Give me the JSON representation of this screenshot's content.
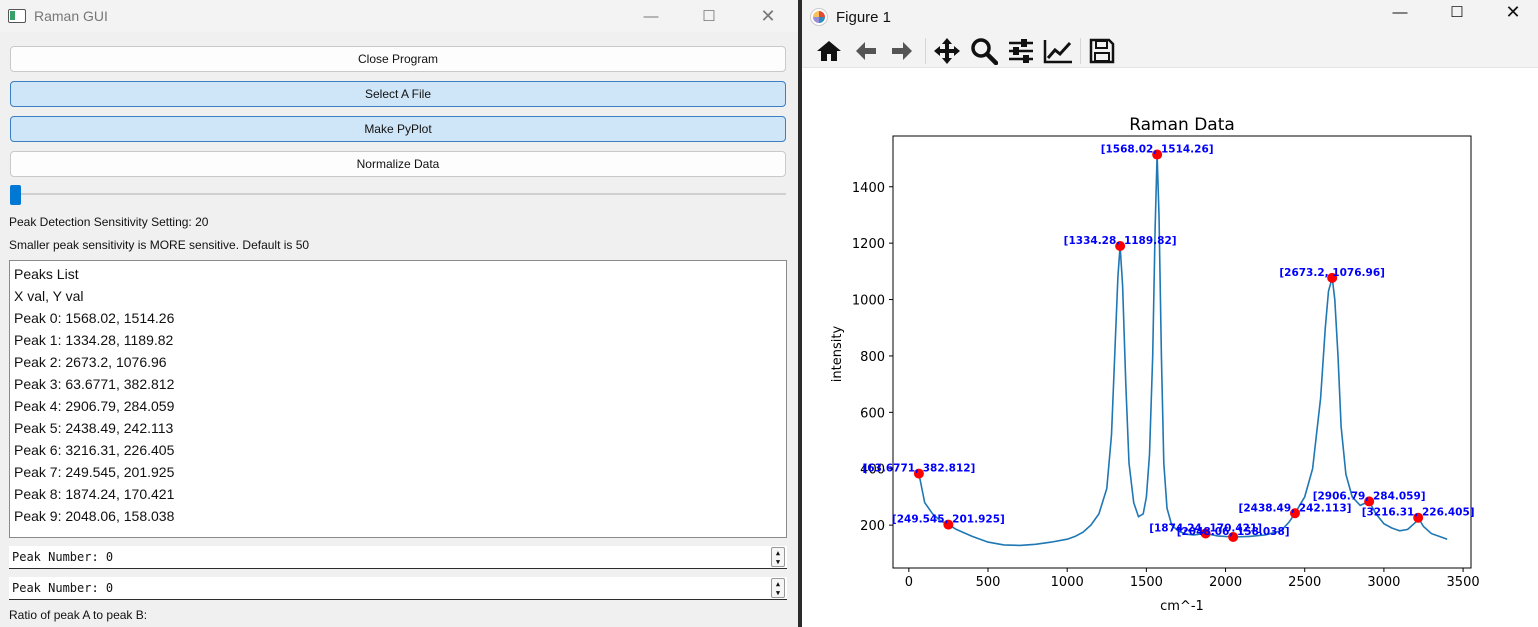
{
  "left_window": {
    "title": "Raman GUI",
    "buttons": {
      "close_program": "Close Program",
      "select_file": "Select A File",
      "make_pyplot": "Make PyPlot",
      "normalize": "Normalize Data"
    },
    "slider_value": 20,
    "sensitivity_label": "Peak Detection Sensitivity Setting: 20",
    "sensitivity_hint": "Smaller peak sensitivity is MORE sensitive. Default is 50",
    "peaks_list": [
      "Peaks List",
      "X val, Y val",
      "Peak 0: 1568.02, 1514.26",
      "Peak 1: 1334.28, 1189.82",
      "Peak 2: 2673.2, 1076.96",
      "Peak 3: 63.6771, 382.812",
      "Peak 4: 2906.79, 284.059",
      "Peak 5: 2438.49, 242.113",
      "Peak 6: 3216.31, 226.405",
      "Peak 7: 249.545, 201.925",
      "Peak 8: 1874.24, 170.421",
      "Peak 9: 2048.06, 158.038"
    ],
    "peak_a": "Peak Number: 0",
    "peak_b": "Peak Number: 0",
    "ratio_label": "Ratio of peak A to peak B:"
  },
  "right_window": {
    "title": "Figure 1",
    "toolbar_icons": [
      "home-icon",
      "back-arrow-icon",
      "forward-arrow-icon",
      "pan-icon",
      "zoom-icon",
      "configure-subplots-icon",
      "edit-axis-icon",
      "save-icon"
    ]
  },
  "chart_data": {
    "type": "line",
    "title": "Raman Data",
    "xlabel": "cm^-1",
    "ylabel": "intensity",
    "xlim": [
      -100,
      3550
    ],
    "ylim": [
      48,
      1580
    ],
    "xticks": [
      0,
      500,
      1000,
      1500,
      2000,
      2500,
      3000,
      3500
    ],
    "yticks": [
      200,
      400,
      600,
      800,
      1000,
      1200,
      1400
    ],
    "line_color": "#1f77b4",
    "marker_color": "#ff0000",
    "annotation_color": "#0000ff",
    "spectrum": {
      "x": [
        63.68,
        100,
        150,
        200,
        249.55,
        300,
        400,
        500,
        600,
        700,
        800,
        900,
        1000,
        1050,
        1100,
        1150,
        1200,
        1250,
        1280,
        1300,
        1320,
        1334.28,
        1350,
        1370,
        1390,
        1420,
        1450,
        1480,
        1500,
        1520,
        1540,
        1555,
        1568.02,
        1580,
        1595,
        1610,
        1630,
        1660,
        1700,
        1750,
        1800,
        1874.24,
        1950,
        2048.06,
        2150,
        2250,
        2350,
        2400,
        2438.49,
        2500,
        2550,
        2600,
        2630,
        2650,
        2673.2,
        2690,
        2710,
        2730,
        2760,
        2800,
        2850,
        2906.79,
        2950,
        3000,
        3050,
        3100,
        3150,
        3200,
        3216.31,
        3250,
        3300,
        3350,
        3400
      ],
      "y": [
        382.81,
        280,
        240,
        215,
        201.93,
        185,
        160,
        140,
        130,
        128,
        132,
        140,
        150,
        160,
        175,
        200,
        240,
        330,
        520,
        800,
        1080,
        1189.82,
        1050,
        700,
        420,
        280,
        230,
        240,
        300,
        450,
        800,
        1250,
        1514.26,
        1300,
        800,
        420,
        260,
        200,
        180,
        168,
        165,
        170.42,
        162,
        158.04,
        160,
        165,
        180,
        210,
        242.11,
        300,
        400,
        650,
        900,
        1030,
        1076.96,
        1000,
        800,
        550,
        380,
        300,
        270,
        284.06,
        240,
        205,
        190,
        180,
        185,
        210,
        226.41,
        195,
        170,
        160,
        150
      ]
    },
    "peaks": [
      {
        "x": 1568.02,
        "y": 1514.26,
        "label": "[1568.02, 1514.26]"
      },
      {
        "x": 1334.28,
        "y": 1189.82,
        "label": "[1334.28, 1189.82]"
      },
      {
        "x": 2673.2,
        "y": 1076.96,
        "label": "[2673.2, 1076.96]"
      },
      {
        "x": 63.6771,
        "y": 382.812,
        "label": "[63.6771, 382.812]"
      },
      {
        "x": 2906.79,
        "y": 284.059,
        "label": "[2906.79, 284.059]"
      },
      {
        "x": 2438.49,
        "y": 242.113,
        "label": "[2438.49, 242.113]"
      },
      {
        "x": 3216.31,
        "y": 226.405,
        "label": "[3216.31, 226.405]"
      },
      {
        "x": 249.545,
        "y": 201.925,
        "label": "[249.545, 201.925]"
      },
      {
        "x": 1874.24,
        "y": 170.421,
        "label": "[1874.24, 170.421]"
      },
      {
        "x": 2048.06,
        "y": 158.038,
        "label": "[2048.06, 158.038]"
      }
    ]
  }
}
